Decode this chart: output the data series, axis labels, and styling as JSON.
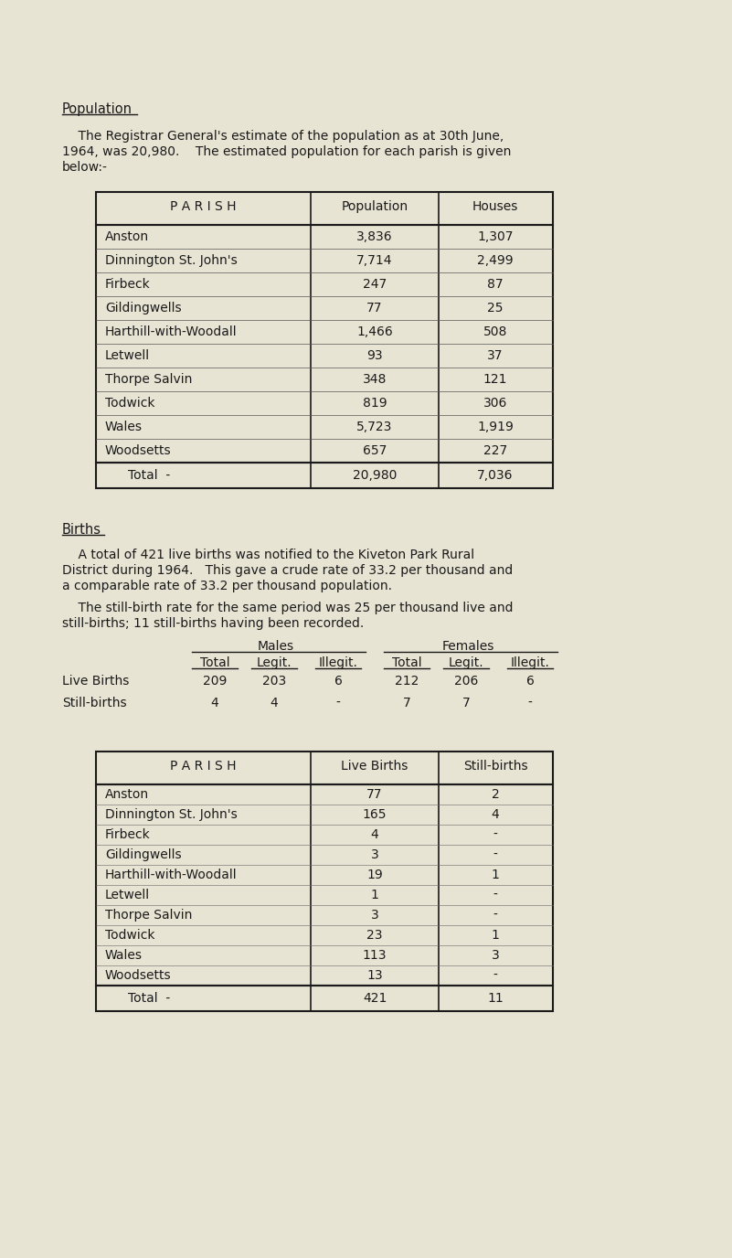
{
  "bg_color": "#e8e4d4",
  "text_color": "#1a1a1a",
  "page_title": "Population",
  "table1_headers": [
    "P A R I S H",
    "Population",
    "Houses"
  ],
  "table1_rows": [
    [
      "Anston",
      "3,836",
      "1,307"
    ],
    [
      "Dinnington St. John's",
      "7,714",
      "2,499"
    ],
    [
      "Firbeck",
      "247",
      "87"
    ],
    [
      "Gildingwells",
      "77",
      "25"
    ],
    [
      "Harthill-with-Woodall",
      "1,466",
      "508"
    ],
    [
      "Letwell",
      "93",
      "37"
    ],
    [
      "Thorpe Salvin",
      "348",
      "121"
    ],
    [
      "Todwick",
      "819",
      "306"
    ],
    [
      "Wales",
      "5,723",
      "1,919"
    ],
    [
      "Woodsetts",
      "657",
      "227"
    ]
  ],
  "table1_total": [
    "Total  -",
    "20,980",
    "7,036"
  ],
  "births_title": "Births",
  "table3_headers": [
    "P A R I S H",
    "Live Births",
    "Still-births"
  ],
  "table3_rows": [
    [
      "Anston",
      "77",
      "2"
    ],
    [
      "Dinnington St. John's",
      "165",
      "4"
    ],
    [
      "Firbeck",
      "4",
      "-"
    ],
    [
      "Gildingwells",
      "3",
      "-"
    ],
    [
      "Harthill-with-Woodall",
      "19",
      "1"
    ],
    [
      "Letwell",
      "1",
      "-"
    ],
    [
      "Thorpe Salvin",
      "3",
      "-"
    ],
    [
      "Todwick",
      "23",
      "1"
    ],
    [
      "Wales",
      "113",
      "3"
    ],
    [
      "Woodsetts",
      "13",
      "-"
    ]
  ],
  "table3_total": [
    "Total  -",
    "421",
    "11"
  ]
}
